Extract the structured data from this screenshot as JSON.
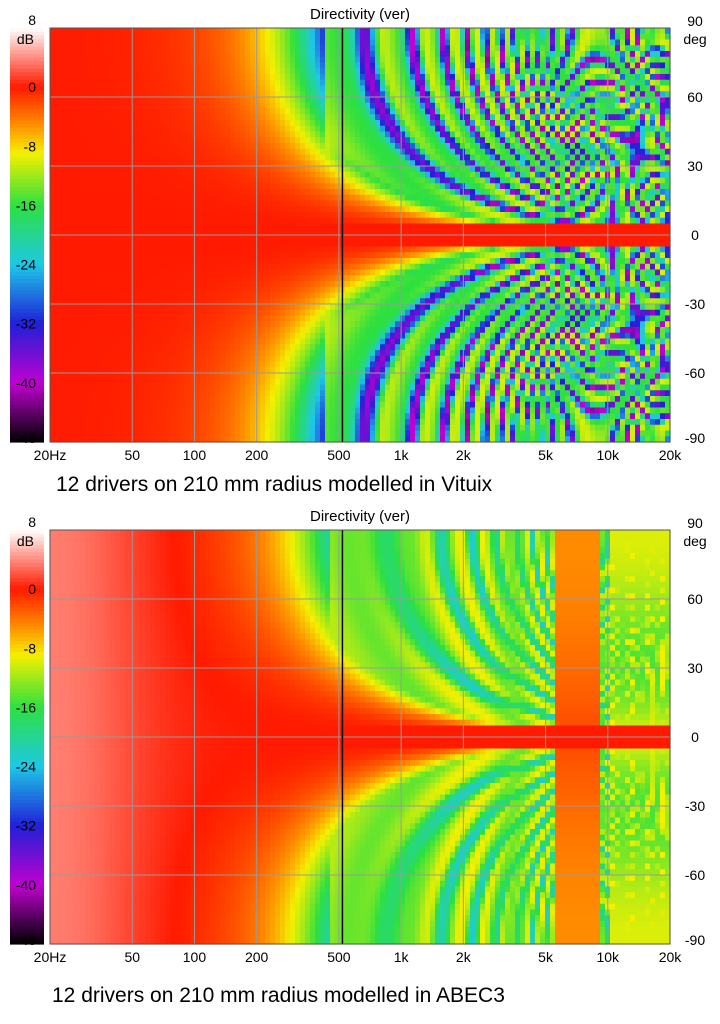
{
  "colors": {
    "loud": "#ff1a00",
    "orange": "#ff8c00",
    "yellow": "#f4f000",
    "green": "#2de040",
    "cyan": "#1ec8e6",
    "blue": "#2020d8",
    "magenta": "#c000d0",
    "black": "#000000",
    "grid": "#9a9a9a",
    "contour": "#8a8a8a",
    "marker_line": "#000000"
  },
  "captions": [
    "12 drivers on 210 mm radius modelled in Vituix",
    "12 drivers on 210 mm radius modelled in ABEC3"
  ],
  "chart_data": [
    {
      "type": "heatmap",
      "title": "Directivity (ver)",
      "xlabel": "",
      "ylabel": "deg",
      "x_scale": "log",
      "xlim": [
        20,
        20000
      ],
      "x_ticks": [
        "20Hz",
        "50",
        "100",
        "200",
        "500",
        "1k",
        "2k",
        "5k",
        "10k",
        "20k"
      ],
      "x_tick_values": [
        20,
        50,
        100,
        200,
        500,
        1000,
        2000,
        5000,
        10000,
        20000
      ],
      "ylim": [
        -90,
        90
      ],
      "y_ticks": [
        "90",
        "60",
        "30",
        "0",
        "-30",
        "-60",
        "-90"
      ],
      "y_tick_values": [
        90,
        60,
        30,
        0,
        -30,
        -60,
        -90
      ],
      "colorbar": {
        "unit": "dB",
        "range": [
          -48,
          8
        ],
        "ticks": [
          "8",
          "0",
          "-8",
          "-16",
          "-24",
          "-32",
          "-40",
          "-48"
        ],
        "tick_values": [
          8,
          0,
          -8,
          -16,
          -24,
          -32,
          -40,
          -48
        ]
      },
      "marker_frequency": 520,
      "grid": true,
      "model": "vituix"
    },
    {
      "type": "heatmap",
      "title": "Directivity (ver)",
      "xlabel": "",
      "ylabel": "deg",
      "x_scale": "log",
      "xlim": [
        20,
        20000
      ],
      "x_ticks": [
        "20Hz",
        "50",
        "100",
        "200",
        "500",
        "1k",
        "2k",
        "5k",
        "10k",
        "20k"
      ],
      "x_tick_values": [
        20,
        50,
        100,
        200,
        500,
        1000,
        2000,
        5000,
        10000,
        20000
      ],
      "ylim": [
        -90,
        90
      ],
      "y_ticks": [
        "90",
        "60",
        "30",
        "0",
        "-30",
        "-60",
        "-90"
      ],
      "y_tick_values": [
        90,
        60,
        30,
        0,
        -30,
        -60,
        -90
      ],
      "colorbar": {
        "unit": "dB",
        "range": [
          -48,
          8
        ],
        "ticks": [
          "8",
          "0",
          "-8",
          "-16",
          "-24",
          "-32",
          "-40",
          "-48"
        ],
        "tick_values": [
          8,
          0,
          -8,
          -16,
          -24,
          -32,
          -40,
          -48
        ]
      },
      "marker_frequency": 520,
      "grid": true,
      "model": "abec"
    }
  ]
}
